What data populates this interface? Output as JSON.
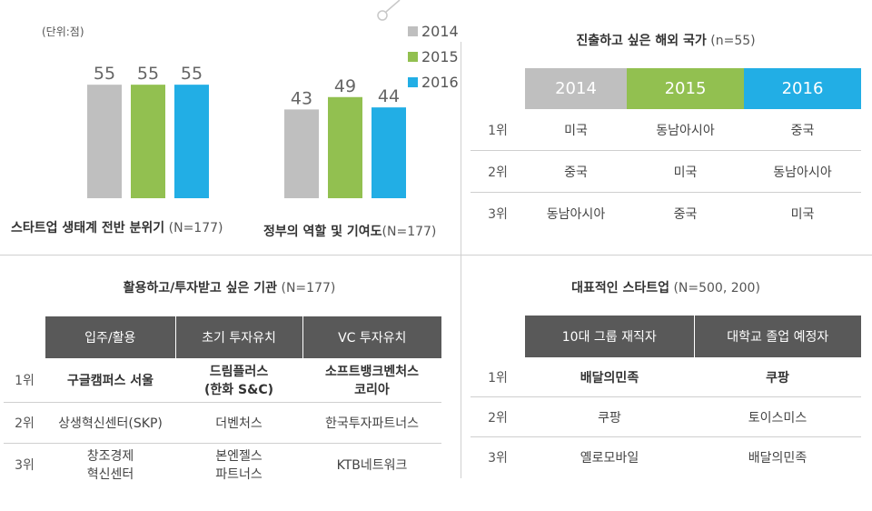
{
  "unit_label": "(단위:점)",
  "legend": [
    {
      "label": "2014",
      "color": "#bfbfbf"
    },
    {
      "label": "2015",
      "color": "#92c050"
    },
    {
      "label": "2016",
      "color": "#22aee5"
    }
  ],
  "chart_data": {
    "type": "bar",
    "title": "",
    "ylabel": "점",
    "ylim": [
      0,
      60
    ],
    "categories": [
      "스타트업 생태계 전반 분위기 (N=177)",
      "정부의 역할 및 기여도(N=177)"
    ],
    "series": [
      {
        "name": "2014",
        "color": "#bfbfbf",
        "values": [
          55,
          43
        ]
      },
      {
        "name": "2015",
        "color": "#92c050",
        "values": [
          55,
          49
        ]
      },
      {
        "name": "2016",
        "color": "#22aee5",
        "values": [
          55,
          44
        ]
      }
    ]
  },
  "captions": [
    {
      "main": "스타트업 생태계 전반 분위기",
      "n": " (N=177)"
    },
    {
      "main": "정부의 역할 및 기여도",
      "n": "(N=177)"
    }
  ],
  "overseas": {
    "title": "진출하고 싶은 해외 국가",
    "n": " (n=55)",
    "headers": [
      "2014",
      "2015",
      "2016"
    ],
    "rows": [
      {
        "rank": "1위",
        "cells": [
          "미국",
          "동남아시아",
          "중국"
        ]
      },
      {
        "rank": "2위",
        "cells": [
          "중국",
          "미국",
          "동남아시아"
        ]
      },
      {
        "rank": "3위",
        "cells": [
          "동남아시아",
          "중국",
          "미국"
        ]
      }
    ]
  },
  "institutions": {
    "title": "활용하고/투자받고 싶은 기관",
    "n": " (N=177)",
    "headers": [
      "입주/활용",
      "초기 투자유치",
      "VC 투자유치"
    ],
    "rows": [
      {
        "rank": "1위",
        "cells": [
          [
            "구글캠퍼스 서울",
            ""
          ],
          [
            "드림플러스",
            "(한화 S&C)"
          ],
          [
            "소프트뱅크벤처스",
            "코리아"
          ]
        ]
      },
      {
        "rank": "2위",
        "cells": [
          [
            "상생혁신센터(SKP)",
            ""
          ],
          [
            "더벤처스",
            ""
          ],
          [
            "한국투자파트너스",
            ""
          ]
        ]
      },
      {
        "rank": "3위",
        "cells": [
          [
            "창조경제",
            "혁신센터"
          ],
          [
            "본엔젤스",
            "파트너스"
          ],
          [
            "KTB네트워크",
            ""
          ]
        ]
      }
    ]
  },
  "startups": {
    "title": "대표적인 스타트업",
    "n": " (N=500, 200)",
    "headers": [
      "10대 그룹 재직자",
      "대학교 졸업 예정자"
    ],
    "rows": [
      {
        "rank": "1위",
        "cells": [
          "배달의민족",
          "쿠팡"
        ]
      },
      {
        "rank": "2위",
        "cells": [
          "쿠팡",
          "토이스미스"
        ]
      },
      {
        "rank": "3위",
        "cells": [
          "옐로모바일",
          "배달의민족"
        ]
      }
    ]
  }
}
